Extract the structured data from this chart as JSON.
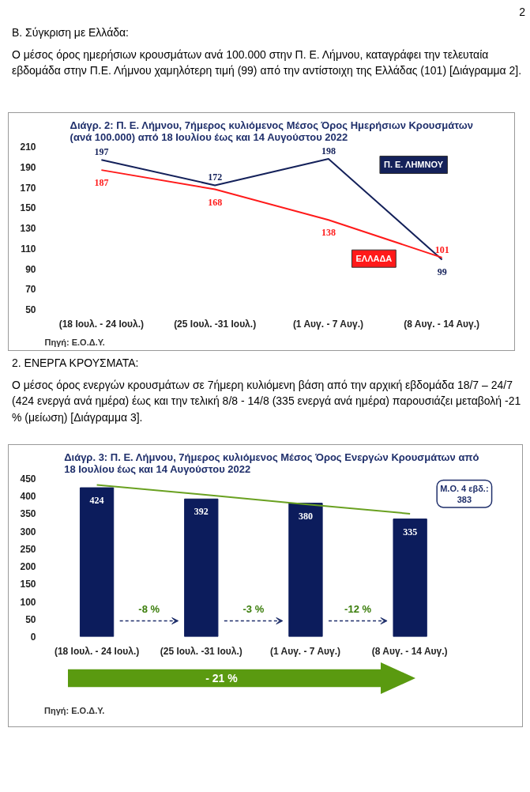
{
  "chart_data": [
    {
      "type": "line",
      "title": "Διάγρ. 2: Π. Ε. Λήμνου, 7ήμερος κυλιόμενος Μέσος Όρος Ημερήσιων Κρουσμάτων (ανά 100.000) από 18 Ιουλίου έως και 14 Αυγούστου 2022",
      "categories": [
        "(18 Ιουλ. - 24 Ιουλ.)",
        "(25 Ιουλ. -31 Ιουλ.)",
        "(1 Αυγ. - 7 Αυγ.)",
        "(8 Αυγ. - 14 Αυγ.)"
      ],
      "series": [
        {
          "name": "Π. Ε. ΛΗΜΝΟΥ",
          "color": "#14215a",
          "values": [
            197,
            172,
            198,
            99
          ]
        },
        {
          "name": "ΕΛΛΑΔΑ",
          "color": "#ff1a1a",
          "values": [
            187,
            168,
            138,
            101
          ]
        }
      ],
      "ylim": [
        50,
        210
      ],
      "yticks": [
        50,
        70,
        90,
        110,
        130,
        150,
        170,
        190,
        210
      ],
      "data_labels": true,
      "annotations": [
        "2",
        "Β. Σύγκριση με Ελλάδα:",
        "Ο μέσος όρος ημερήσιων κρουσμάτων ανά 100.000 στην Π. Ε. Λήμνου, καταγράφει την τελευταία εβδομάδα στην Π.Ε. Λήμνου χαμηλότερη τιμή (99) από την αντίστοιχη της Ελλάδας (101)  [Διάγραμμα 2].",
        "Πηγή: Ε.Ο.Δ.Υ."
      ]
    },
    {
      "type": "bar",
      "title": "Διάγρ. 3: Π. Ε. Λήμνου, 7ήμερος κυλιόμενος Μέσος Όρος Ενεργών Κρουσμάτων από 18 Ιουλίου έως και 14 Αυγούστου 2022",
      "categories": [
        "(18 Ιουλ. - 24 Ιουλ.)",
        "(25 Ιουλ. -31 Ιουλ.)",
        "(1 Αυγ. - 7 Αυγ.)",
        "(8 Αυγ. - 14 Αυγ.)"
      ],
      "series": [
        {
          "color": "#0c1c5c",
          "values": [
            424,
            392,
            380,
            335
          ],
          "value_labels": [
            "424",
            "392",
            "380",
            "335"
          ]
        },
        {
          "type": "line",
          "color": "#6aa121",
          "values": [
            432,
            405,
            377,
            350
          ]
        }
      ],
      "ylim": [
        0,
        450
      ],
      "yticks": [
        0,
        50,
        100,
        150,
        200,
        250,
        300,
        350,
        400,
        450
      ],
      "annotations": [
        "2. ΕΝΕΡΓΑ ΚΡΟΥΣΜΑΤΑ:",
        "Ο μέσος όρος ενεργών κρουσμάτων σε 7ήμερη κυλιόμενη βάση από την αρχική εβδομάδα 18/7 – 24/7 (424 ενεργά ανά ημέρα) έως και την τελική 8/8 - 14/8 (335 ενεργά  ανά ημέρα) παρουσιάζει μεταβολή -21 % (μείωση) [Διάγραμμα 3].",
        "Πηγή: Ε.Ο.Δ.Υ.",
        "Μ.Ο. 4 εβδ.: 383",
        "-8 %",
        "-3 %",
        "-12 %",
        "- 21 %"
      ]
    }
  ]
}
